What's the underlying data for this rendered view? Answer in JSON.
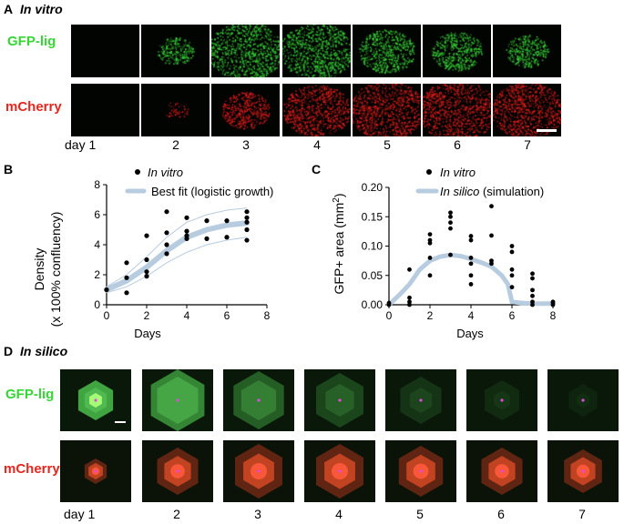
{
  "panelA": {
    "letter": "A",
    "title": "In vitro",
    "rows": [
      "GFP-lig",
      "mCherry"
    ],
    "days": [
      "day 1",
      "2",
      "3",
      "4",
      "5",
      "6",
      "7"
    ],
    "gfp_intensity": [
      0.0,
      0.25,
      0.95,
      0.9,
      0.6,
      0.5,
      0.35
    ],
    "mcherry_intensity": [
      0.0,
      0.05,
      0.45,
      0.8,
      0.95,
      1.0,
      0.9
    ]
  },
  "panelB": {
    "letter": "B",
    "ylabel_line1": "Density",
    "ylabel_line2": "(x 100% confluency)",
    "xlabel": "Days",
    "legend": [
      "In vitro",
      "Best fit (logistic growth)"
    ]
  },
  "panelC": {
    "letter": "C",
    "ylabel": "GFP+ area (mm",
    "ylabel_sup": "2",
    "ylabel_end": ")",
    "xlabel": "Days",
    "legend_1": "In vitro",
    "legend_2_italic": "In silico",
    "legend_2_rest": " (simulation)"
  },
  "panelD": {
    "letter": "D",
    "title": "In silico",
    "rows": [
      "GFP-lig",
      "mCherry"
    ],
    "days": [
      "day 1",
      "2",
      "3",
      "4",
      "5",
      "6",
      "7"
    ]
  },
  "chart_data": [
    {
      "type": "scatter",
      "panel": "B",
      "xlabel": "Days",
      "ylabel": "Density (x 100% confluency)",
      "xlim": [
        0,
        8
      ],
      "ylim": [
        0,
        8
      ],
      "xticks": [
        0,
        2,
        4,
        6,
        8
      ],
      "yticks": [
        0,
        2,
        4,
        6,
        8
      ],
      "series": [
        {
          "name": "In vitro",
          "points": [
            [
              0,
              1.0
            ],
            [
              1,
              0.8
            ],
            [
              1,
              1.8
            ],
            [
              1,
              2.8
            ],
            [
              2,
              1.9
            ],
            [
              2,
              2.2
            ],
            [
              2,
              3.0
            ],
            [
              2,
              4.6
            ],
            [
              3,
              3.4
            ],
            [
              3,
              4.0
            ],
            [
              3,
              4.8
            ],
            [
              3,
              6.2
            ],
            [
              4,
              4.4
            ],
            [
              4,
              4.6
            ],
            [
              4,
              4.9
            ],
            [
              4,
              5.8
            ],
            [
              5,
              4.4
            ],
            [
              5,
              5.6
            ],
            [
              6,
              4.5
            ],
            [
              6,
              5.6
            ],
            [
              7,
              4.3
            ],
            [
              7,
              5.0
            ],
            [
              7,
              5.5
            ],
            [
              7,
              5.8
            ],
            [
              7,
              6.2
            ]
          ]
        },
        {
          "name": "Best fit (logistic growth)",
          "x": [
            0,
            1,
            2,
            3,
            4,
            5,
            6,
            7
          ],
          "y": [
            1.0,
            1.6,
            2.5,
            3.6,
            4.5,
            5.0,
            5.3,
            5.45
          ],
          "lower": [
            0.8,
            1.2,
            1.9,
            2.8,
            3.5,
            4.0,
            4.3,
            4.5
          ],
          "upper": [
            1.2,
            2.0,
            3.2,
            4.5,
            5.5,
            6.0,
            6.3,
            6.45
          ]
        }
      ]
    },
    {
      "type": "scatter",
      "panel": "C",
      "xlabel": "Days",
      "ylabel": "GFP+ area (mm2)",
      "xlim": [
        0,
        8
      ],
      "ylim": [
        0,
        0.2
      ],
      "xticks": [
        0,
        2,
        4,
        6,
        8
      ],
      "yticks": [
        "0.00",
        "0.05",
        "0.10",
        "0.15",
        "0.20"
      ],
      "series": [
        {
          "name": "In vitro",
          "points": [
            [
              0,
              0.0
            ],
            [
              0,
              0.003
            ],
            [
              1,
              0.0
            ],
            [
              1,
              0.005
            ],
            [
              1,
              0.012
            ],
            [
              1,
              0.06
            ],
            [
              2,
              0.05
            ],
            [
              2,
              0.08
            ],
            [
              2,
              0.105
            ],
            [
              2,
              0.11
            ],
            [
              2,
              0.12
            ],
            [
              3,
              0.085
            ],
            [
              3,
              0.13
            ],
            [
              3,
              0.14
            ],
            [
              3,
              0.15
            ],
            [
              3,
              0.157
            ],
            [
              4,
              0.035
            ],
            [
              4,
              0.05
            ],
            [
              4,
              0.07
            ],
            [
              4,
              0.08
            ],
            [
              4,
              0.11
            ],
            [
              4,
              0.117
            ],
            [
              5,
              0.07
            ],
            [
              5,
              0.075
            ],
            [
              5,
              0.118
            ],
            [
              5,
              0.168
            ],
            [
              6,
              0.03
            ],
            [
              6,
              0.05
            ],
            [
              6,
              0.06
            ],
            [
              6,
              0.09
            ],
            [
              6,
              0.1
            ],
            [
              7,
              0.0
            ],
            [
              7,
              0.005
            ],
            [
              7,
              0.015
            ],
            [
              7,
              0.025
            ],
            [
              7,
              0.045
            ],
            [
              7,
              0.053
            ],
            [
              8,
              0.0
            ],
            [
              8,
              0.003
            ],
            [
              8,
              0.005
            ]
          ]
        },
        {
          "name": "In silico (simulation)",
          "x": [
            0,
            0.3,
            0.6,
            1,
            1.5,
            2,
            2.5,
            3,
            3.5,
            4,
            4.5,
            5,
            5.5,
            5.8,
            6,
            6.5,
            7,
            8
          ],
          "y": [
            0.0,
            0.01,
            0.02,
            0.035,
            0.06,
            0.075,
            0.082,
            0.085,
            0.083,
            0.078,
            0.072,
            0.065,
            0.05,
            0.035,
            0.005,
            0.003,
            0.002,
            0.002
          ]
        }
      ]
    }
  ]
}
